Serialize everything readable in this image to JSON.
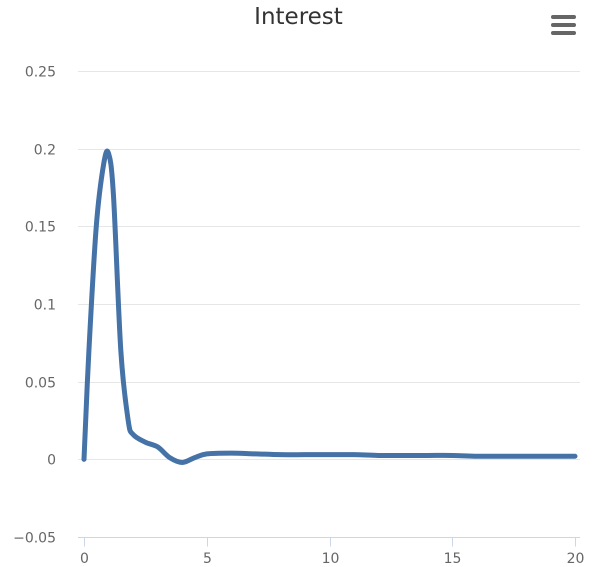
{
  "chart_data": {
    "type": "line",
    "title": "Interest",
    "xlabel": "",
    "ylabel": "",
    "xlim": [
      0,
      20
    ],
    "ylim": [
      -0.05,
      0.25
    ],
    "x_ticks": [
      0,
      5,
      10,
      15,
      20
    ],
    "x_tick_labels": [
      "0",
      "5",
      "10",
      "15",
      "20"
    ],
    "y_ticks": [
      -0.05,
      0,
      0.05,
      0.1,
      0.15,
      0.2,
      0.25
    ],
    "y_tick_labels": [
      "−0.05",
      "0",
      "0.05",
      "0.1",
      "0.15",
      "0.2",
      "0.25"
    ],
    "grid": true,
    "legend": false,
    "series": [
      {
        "color": "#4572a7",
        "x": [
          0,
          0.2,
          0.5,
          0.8,
          1,
          1.2,
          1.5,
          1.8,
          2,
          2.5,
          3,
          3.5,
          4,
          4.5,
          5,
          6,
          7,
          8,
          9,
          10,
          11,
          12,
          13,
          14,
          15,
          16,
          17,
          18,
          19,
          20
        ],
        "y": [
          0,
          0.07,
          0.15,
          0.19,
          0.197,
          0.17,
          0.07,
          0.025,
          0.016,
          0.011,
          0.008,
          0.001,
          -0.002,
          0.001,
          0.0035,
          0.004,
          0.0035,
          0.003,
          0.003,
          0.003,
          0.003,
          0.0025,
          0.0025,
          0.0025,
          0.0025,
          0.002,
          0.002,
          0.002,
          0.002,
          0.002
        ]
      }
    ]
  },
  "menu": {
    "icon": "hamburger-icon"
  }
}
